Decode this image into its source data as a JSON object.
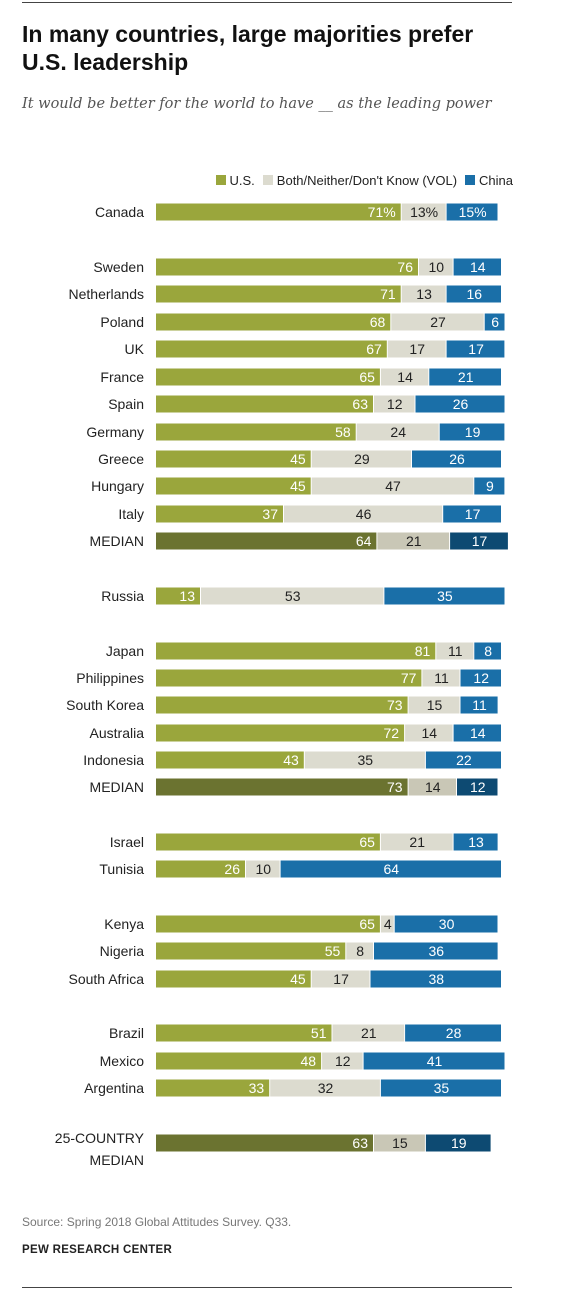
{
  "title": "In many countries, large majorities prefer U.S. leadership",
  "subtitle": "It would be better for the world to have __ as the leading power",
  "legend": {
    "us": "U.S.",
    "both": "Both/Neither/Don't Know (VOL)",
    "china": "China"
  },
  "colors": {
    "us": "#9aa63c",
    "us_median": "#6b7330",
    "both": "#dcdbcf",
    "both_median": "#c9c7b6",
    "china": "#1a6fa8",
    "china_median": "#0d4a72"
  },
  "source": "Source: Spring 2018 Global Attitudes Survey. Q33.",
  "organization": "PEW RESEARCH CENTER",
  "chart_data": {
    "type": "bar",
    "orientation": "horizontal",
    "stacked": true,
    "xlim": [
      0,
      100
    ],
    "series_names": [
      "U.S.",
      "Both/Neither/Don't Know (VOL)",
      "China"
    ],
    "rows": [
      {
        "label": "Canada",
        "values": [
          71,
          13,
          15
        ],
        "labels": [
          "71%",
          "13%",
          "15%"
        ],
        "median": false
      },
      {
        "label": "Sweden",
        "values": [
          76,
          10,
          14
        ],
        "labels": [
          "76",
          "10",
          "14"
        ],
        "median": false
      },
      {
        "label": "Netherlands",
        "values": [
          71,
          13,
          16
        ],
        "labels": [
          "71",
          "13",
          "16"
        ],
        "median": false
      },
      {
        "label": "Poland",
        "values": [
          68,
          27,
          6
        ],
        "labels": [
          "68",
          "27",
          "6"
        ],
        "median": false
      },
      {
        "label": "UK",
        "values": [
          67,
          17,
          17
        ],
        "labels": [
          "67",
          "17",
          "17"
        ],
        "median": false
      },
      {
        "label": "France",
        "values": [
          65,
          14,
          21
        ],
        "labels": [
          "65",
          "14",
          "21"
        ],
        "median": false
      },
      {
        "label": "Spain",
        "values": [
          63,
          12,
          26
        ],
        "labels": [
          "63",
          "12",
          "26"
        ],
        "median": false
      },
      {
        "label": "Germany",
        "values": [
          58,
          24,
          19
        ],
        "labels": [
          "58",
          "24",
          "19"
        ],
        "median": false
      },
      {
        "label": "Greece",
        "values": [
          45,
          29,
          26
        ],
        "labels": [
          "45",
          "29",
          "26"
        ],
        "median": false
      },
      {
        "label": "Hungary",
        "values": [
          45,
          47,
          9
        ],
        "labels": [
          "45",
          "47",
          "9"
        ],
        "median": false
      },
      {
        "label": "Italy",
        "values": [
          37,
          46,
          17
        ],
        "labels": [
          "37",
          "46",
          "17"
        ],
        "median": false
      },
      {
        "label": "MEDIAN",
        "values": [
          64,
          21,
          17
        ],
        "labels": [
          "64",
          "21",
          "17"
        ],
        "median": true
      },
      {
        "label": "Russia",
        "values": [
          13,
          53,
          35
        ],
        "labels": [
          "13",
          "53",
          "35"
        ],
        "median": false
      },
      {
        "label": "Japan",
        "values": [
          81,
          11,
          8
        ],
        "labels": [
          "81",
          "11",
          "8"
        ],
        "median": false
      },
      {
        "label": "Philippines",
        "values": [
          77,
          11,
          12
        ],
        "labels": [
          "77",
          "11",
          "12"
        ],
        "median": false
      },
      {
        "label": "South Korea",
        "values": [
          73,
          15,
          11
        ],
        "labels": [
          "73",
          "15",
          "11"
        ],
        "median": false
      },
      {
        "label": "Australia",
        "values": [
          72,
          14,
          14
        ],
        "labels": [
          "72",
          "14",
          "14"
        ],
        "median": false
      },
      {
        "label": "Indonesia",
        "values": [
          43,
          35,
          22
        ],
        "labels": [
          "43",
          "35",
          "22"
        ],
        "median": false
      },
      {
        "label": "MEDIAN",
        "values": [
          73,
          14,
          12
        ],
        "labels": [
          "73",
          "14",
          "12"
        ],
        "median": true
      },
      {
        "label": "Israel",
        "values": [
          65,
          21,
          13
        ],
        "labels": [
          "65",
          "21",
          "13"
        ],
        "median": false
      },
      {
        "label": "Tunisia",
        "values": [
          26,
          10,
          64
        ],
        "labels": [
          "26",
          "10",
          "64"
        ],
        "median": false
      },
      {
        "label": "Kenya",
        "values": [
          65,
          4,
          30
        ],
        "labels": [
          "65",
          "4",
          "30"
        ],
        "median": false
      },
      {
        "label": "Nigeria",
        "values": [
          55,
          8,
          36
        ],
        "labels": [
          "55",
          "8",
          "36"
        ],
        "median": false
      },
      {
        "label": "South Africa",
        "values": [
          45,
          17,
          38
        ],
        "labels": [
          "45",
          "17",
          "38"
        ],
        "median": false
      },
      {
        "label": "Brazil",
        "values": [
          51,
          21,
          28
        ],
        "labels": [
          "51",
          "21",
          "28"
        ],
        "median": false
      },
      {
        "label": "Mexico",
        "values": [
          48,
          12,
          41
        ],
        "labels": [
          "48",
          "12",
          "41"
        ],
        "median": false
      },
      {
        "label": "Argentina",
        "values": [
          33,
          32,
          35
        ],
        "labels": [
          "33",
          "32",
          "35"
        ],
        "median": false
      },
      {
        "label": "25-COUNTRY MEDIAN",
        "values": [
          63,
          15,
          19
        ],
        "labels": [
          "63",
          "15",
          "19"
        ],
        "median": true
      }
    ]
  }
}
